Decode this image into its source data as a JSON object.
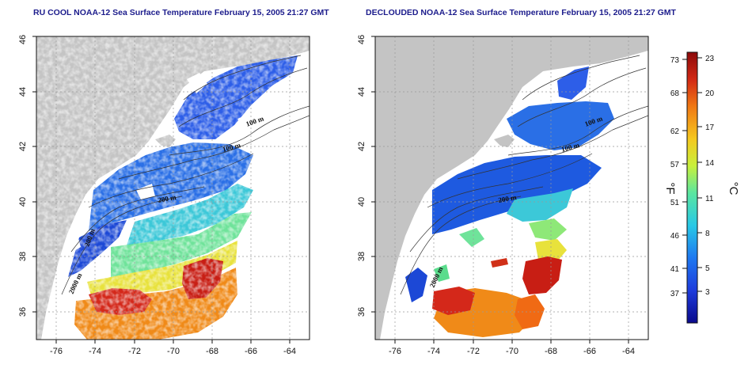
{
  "panels": [
    {
      "title": "RU COOL NOAA-12 Sea Surface Temperature February 15, 2005 21:27 GMT",
      "contour_labels": [
        "100 m",
        "100 m",
        "200 m",
        "200 m",
        "2000 m"
      ]
    },
    {
      "title": "DECLOUDED NOAA-12 Sea Surface Temperature February 15, 2005 21:27 GMT",
      "contour_labels": [
        "100 m",
        "100 m",
        "200 m",
        "2000 m"
      ]
    }
  ],
  "axes": {
    "x_ticks": [
      "-76",
      "-74",
      "-72",
      "-70",
      "-68",
      "-66",
      "-64"
    ],
    "y_ticks": [
      "36",
      "38",
      "40",
      "42",
      "44",
      "46"
    ],
    "x_range": [
      -77.0,
      -63.0
    ],
    "y_range": [
      35.0,
      46.0
    ]
  },
  "colorbar": {
    "fahrenheit_ticks": [
      "73",
      "68",
      "62",
      "57",
      "51",
      "46",
      "41",
      "37"
    ],
    "celsius_ticks": [
      "23",
      "20",
      "17",
      "14",
      "11",
      "8",
      "5",
      "3"
    ],
    "fahrenheit_unit": "°F",
    "celsius_unit": "°C",
    "colors": [
      "#0a0a8c",
      "#1e3cdc",
      "#1e78f0",
      "#28c8e6",
      "#5ae6a0",
      "#c8f03c",
      "#f5c81e",
      "#f07814",
      "#d22814",
      "#8c0a0a"
    ]
  },
  "colors": {
    "land": "#c4c4c4",
    "water_background": "#ffffff",
    "title_text": "#1c1c8c"
  }
}
